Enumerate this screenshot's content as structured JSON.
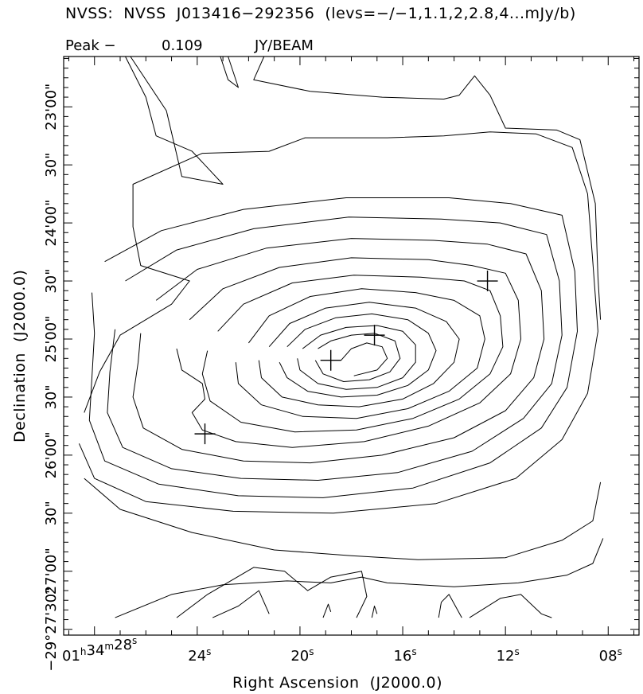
{
  "header": {
    "title": "NVSS:  NVSS  J013416−292356  (levs=−/−1,1.1,2,2.8,4...mJy/b)",
    "peak_label": "Peak −",
    "peak_value": "0.109",
    "peak_unit": "JY/BEAM"
  },
  "chart_data": {
    "type": "contour",
    "title": "NVSS:  NVSS  J013416−292356  (levs=−/−1,1.1,2,2.8,4...mJy/b)",
    "xlabel": "Right Ascension  (J2000.0)",
    "ylabel": "Declination  (J2000.0)",
    "peak": {
      "label": "Peak −",
      "value": 0.109,
      "unit": "JY/BEAM"
    },
    "contour_levels_mJy_per_beam": "−/−1,1.1,2,2.8,4...",
    "x_axis": {
      "unit": "seconds of RA (01h34m)",
      "range": [
        29.2,
        6.8
      ],
      "major_ticks": [
        {
          "value": 28,
          "label_main": "01",
          "sup1": "h",
          "mid": "34",
          "sup2": "m",
          "tail": "28",
          "sup3": "s"
        },
        {
          "value": 24,
          "label_main": "24",
          "sup1": "s"
        },
        {
          "value": 20,
          "label_main": "20",
          "sup1": "s"
        },
        {
          "value": 16,
          "label_main": "16",
          "sup1": "s"
        },
        {
          "value": 12,
          "label_main": "12",
          "sup1": "s"
        },
        {
          "value": 8,
          "label_main": "08",
          "sup1": "s"
        }
      ]
    },
    "y_axis": {
      "unit": "arcseconds relative to −29°22'00\"",
      "range": [
        -333,
        -34
      ],
      "major_ticks": [
        {
          "value": -60,
          "label": "23'00\""
        },
        {
          "value": -90,
          "label": "30\""
        },
        {
          "value": -120,
          "label": "24'00\""
        },
        {
          "value": -150,
          "label": "30\""
        },
        {
          "value": -180,
          "label": "25'00\""
        },
        {
          "value": -210,
          "label": "30\""
        },
        {
          "value": -240,
          "label": "26'00\""
        },
        {
          "value": -270,
          "label": "30\""
        },
        {
          "value": -300,
          "label": "27'00\""
        },
        {
          "value": -330,
          "label": "−29°27'30\""
        }
      ]
    },
    "markers": [
      {
        "ra_s": 18.8,
        "dec_as": -191
      },
      {
        "ra_s": 17.1,
        "dec_as": -178
      },
      {
        "ra_s": 12.7,
        "dec_as": -150
      },
      {
        "ra_s": 23.7,
        "dec_as": -229
      }
    ],
    "contours": [
      [
        [
          18.4,
          -191
        ],
        [
          18.0,
          -185
        ],
        [
          17.4,
          -182
        ],
        [
          16.8,
          -184
        ],
        [
          16.6,
          -190
        ],
        [
          17.0,
          -196
        ],
        [
          17.9,
          -199
        ]
      ],
      [
        [
          19.3,
          -185
        ],
        [
          18.8,
          -181
        ],
        [
          18.0,
          -178
        ],
        [
          17.1,
          -177
        ],
        [
          16.3,
          -181
        ],
        [
          16.1,
          -190
        ],
        [
          16.5,
          -197
        ],
        [
          17.3,
          -201
        ],
        [
          18.3,
          -202
        ],
        [
          19.1,
          -198
        ],
        [
          19.4,
          -191
        ]
      ],
      [
        [
          19.9,
          -185
        ],
        [
          19.2,
          -178
        ],
        [
          18.2,
          -174
        ],
        [
          17.0,
          -173
        ],
        [
          16.0,
          -176
        ],
        [
          15.5,
          -183
        ],
        [
          15.5,
          -192
        ],
        [
          16.0,
          -200
        ],
        [
          17.0,
          -205
        ],
        [
          18.2,
          -206
        ],
        [
          19.3,
          -203
        ],
        [
          20.0,
          -196
        ],
        [
          20.1,
          -190
        ]
      ],
      [
        [
          20.5,
          -184
        ],
        [
          19.8,
          -175
        ],
        [
          18.6,
          -169
        ],
        [
          17.2,
          -167
        ],
        [
          15.8,
          -170
        ],
        [
          15.0,
          -177
        ],
        [
          14.7,
          -186
        ],
        [
          15.0,
          -196
        ],
        [
          15.8,
          -204
        ],
        [
          17.0,
          -209
        ],
        [
          18.4,
          -210
        ],
        [
          19.7,
          -207
        ],
        [
          20.5,
          -200
        ],
        [
          20.8,
          -192
        ]
      ],
      [
        [
          21.2,
          -184
        ],
        [
          20.4,
          -172
        ],
        [
          19.0,
          -164
        ],
        [
          17.3,
          -161
        ],
        [
          15.5,
          -164
        ],
        [
          14.3,
          -171
        ],
        [
          13.8,
          -180
        ],
        [
          14.0,
          -192
        ],
        [
          14.8,
          -203
        ],
        [
          16.0,
          -211
        ],
        [
          17.7,
          -215
        ],
        [
          19.3,
          -214
        ],
        [
          20.7,
          -210
        ],
        [
          21.5,
          -200
        ],
        [
          21.6,
          -191
        ]
      ],
      [
        [
          22.0,
          -182
        ],
        [
          21.2,
          -168
        ],
        [
          19.6,
          -158
        ],
        [
          17.6,
          -154
        ],
        [
          15.5,
          -156
        ],
        [
          14.0,
          -160
        ],
        [
          13.0,
          -168
        ],
        [
          12.8,
          -180
        ],
        [
          13.1,
          -195
        ],
        [
          14.2,
          -207
        ],
        [
          15.8,
          -216
        ],
        [
          17.8,
          -221
        ],
        [
          19.9,
          -220
        ],
        [
          21.5,
          -214
        ],
        [
          22.4,
          -203
        ],
        [
          22.5,
          -192
        ]
      ],
      [
        [
          23.2,
          -176
        ],
        [
          22.2,
          -162
        ],
        [
          20.3,
          -151
        ],
        [
          17.9,
          -147
        ],
        [
          15.3,
          -148
        ],
        [
          13.6,
          -150
        ],
        [
          12.6,
          -155
        ],
        [
          12.2,
          -168
        ],
        [
          12.1,
          -184
        ],
        [
          12.6,
          -198
        ],
        [
          13.8,
          -211
        ],
        [
          15.6,
          -221
        ],
        [
          17.8,
          -227
        ],
        [
          20.2,
          -228
        ],
        [
          22.3,
          -223
        ],
        [
          23.5,
          -212
        ],
        [
          23.8,
          -198
        ],
        [
          23.6,
          -186
        ]
      ],
      [
        [
          24.3,
          -170
        ],
        [
          23.0,
          -154
        ],
        [
          20.8,
          -143
        ],
        [
          18.0,
          -138
        ],
        [
          15.0,
          -139
        ],
        [
          13.3,
          -142
        ],
        [
          12.0,
          -146
        ],
        [
          11.5,
          -160
        ],
        [
          11.4,
          -180
        ],
        [
          11.8,
          -198
        ],
        [
          13.0,
          -213
        ],
        [
          15.0,
          -225
        ],
        [
          17.5,
          -233
        ],
        [
          20.3,
          -236
        ],
        [
          22.5,
          -233
        ],
        [
          23.8,
          -227
        ],
        [
          24.2,
          -218
        ],
        [
          23.7,
          -211
        ],
        [
          23.8,
          -203
        ],
        [
          24.6,
          -196
        ],
        [
          24.8,
          -185
        ]
      ],
      [
        [
          25.6,
          -160
        ],
        [
          24.0,
          -144
        ],
        [
          21.3,
          -133
        ],
        [
          18.0,
          -128
        ],
        [
          14.8,
          -129
        ],
        [
          12.7,
          -131
        ],
        [
          11.2,
          -136
        ],
        [
          10.6,
          -155
        ],
        [
          10.5,
          -180
        ],
        [
          10.9,
          -200
        ],
        [
          12.0,
          -217
        ],
        [
          14.0,
          -231
        ],
        [
          16.8,
          -240
        ],
        [
          19.6,
          -244
        ],
        [
          22.2,
          -243
        ],
        [
          24.6,
          -237
        ],
        [
          26.1,
          -226
        ],
        [
          26.5,
          -210
        ],
        [
          26.3,
          -192
        ],
        [
          26.2,
          -177
        ]
      ],
      [
        [
          26.8,
          -150
        ],
        [
          24.8,
          -134
        ],
        [
          21.8,
          -123
        ],
        [
          18.1,
          -117
        ],
        [
          14.5,
          -118
        ],
        [
          12.2,
          -120
        ],
        [
          10.4,
          -126
        ],
        [
          9.9,
          -150
        ],
        [
          9.8,
          -178
        ],
        [
          10.2,
          -203
        ],
        [
          11.3,
          -221
        ],
        [
          13.3,
          -238
        ],
        [
          16.2,
          -249
        ],
        [
          19.3,
          -253
        ],
        [
          22.3,
          -252
        ],
        [
          25.0,
          -247
        ],
        [
          26.9,
          -236
        ],
        [
          27.5,
          -218
        ],
        [
          27.4,
          -197
        ],
        [
          27.2,
          -175
        ]
      ],
      [
        [
          27.6,
          -140
        ],
        [
          25.4,
          -124
        ],
        [
          22.2,
          -113
        ],
        [
          18.2,
          -107
        ],
        [
          14.2,
          -107
        ],
        [
          11.8,
          -110
        ],
        [
          9.8,
          -116
        ],
        [
          9.3,
          -145
        ],
        [
          9.2,
          -176
        ],
        [
          9.6,
          -205
        ],
        [
          10.6,
          -226
        ],
        [
          12.6,
          -244
        ],
        [
          15.6,
          -257
        ],
        [
          19.1,
          -262
        ],
        [
          22.4,
          -261
        ],
        [
          25.5,
          -255
        ],
        [
          27.6,
          -243
        ],
        [
          28.2,
          -222
        ],
        [
          28.1,
          -200
        ],
        [
          28.0,
          -177
        ],
        [
          28.1,
          -156
        ]
      ],
      [
        [
          28.4,
          -218
        ],
        [
          27.8,
          -197
        ],
        [
          27.0,
          -178
        ],
        [
          25.0,
          -162
        ],
        [
          24.3,
          -150
        ],
        [
          26.2,
          -142
        ],
        [
          26.5,
          -122
        ],
        [
          26.5,
          -100
        ],
        [
          23.8,
          -84
        ],
        [
          21.2,
          -83
        ],
        [
          19.8,
          -76
        ],
        [
          16.6,
          -76
        ],
        [
          14.4,
          -75
        ],
        [
          12.6,
          -73
        ],
        [
          10.8,
          -74
        ],
        [
          9.4,
          -81
        ],
        [
          8.8,
          -105
        ],
        [
          8.6,
          -140
        ],
        [
          8.4,
          -176
        ],
        [
          8.8,
          -208
        ],
        [
          9.8,
          -232
        ],
        [
          11.6,
          -252
        ],
        [
          14.7,
          -265
        ],
        [
          18.7,
          -270
        ],
        [
          22.6,
          -269
        ],
        [
          26.0,
          -264
        ],
        [
          28.0,
          -252
        ],
        [
          28.6,
          -234
        ]
      ],
      [
        [
          26.6,
          -34
        ],
        [
          25.2,
          -62
        ],
        [
          24.6,
          -96
        ],
        [
          23.0,
          -100
        ],
        [
          24.2,
          -83
        ],
        [
          25.6,
          -75
        ],
        [
          26.0,
          -55
        ],
        [
          26.8,
          -34
        ]
      ],
      [
        [
          21.4,
          -34
        ],
        [
          21.8,
          -46
        ],
        [
          19.6,
          -52
        ],
        [
          16.8,
          -55
        ],
        [
          14.4,
          -56
        ],
        [
          13.8,
          -54
        ],
        [
          13.2,
          -44
        ],
        [
          12.6,
          -54
        ],
        [
          12.0,
          -71
        ],
        [
          10.0,
          -72
        ],
        [
          9.1,
          -77
        ],
        [
          8.5,
          -110
        ],
        [
          8.4,
          -148
        ],
        [
          8.3,
          -170
        ]
      ],
      [
        [
          23.1,
          -34
        ],
        [
          22.8,
          -46
        ],
        [
          22.4,
          -50
        ],
        [
          22.8,
          -34
        ]
      ],
      [
        [
          28.4,
          -252
        ],
        [
          27.0,
          -268
        ],
        [
          24.2,
          -280
        ],
        [
          21.0,
          -289
        ],
        [
          18.0,
          -292
        ],
        [
          15.4,
          -294
        ],
        [
          12.0,
          -293
        ],
        [
          9.8,
          -284
        ],
        [
          8.6,
          -274
        ],
        [
          8.3,
          -254
        ]
      ],
      [
        [
          27.2,
          -324
        ],
        [
          25.0,
          -312
        ],
        [
          23.0,
          -307
        ],
        [
          20.5,
          -305
        ],
        [
          18.8,
          -306
        ],
        [
          17.6,
          -303
        ],
        [
          16.6,
          -306
        ],
        [
          14.0,
          -308
        ],
        [
          11.5,
          -306
        ],
        [
          9.6,
          -302
        ],
        [
          8.6,
          -296
        ],
        [
          8.2,
          -283
        ]
      ],
      [
        [
          24.8,
          -324
        ],
        [
          23.6,
          -312
        ],
        [
          21.8,
          -298
        ],
        [
          20.6,
          -300
        ],
        [
          19.7,
          -310
        ],
        [
          18.8,
          -303
        ],
        [
          17.6,
          -300
        ],
        [
          17.4,
          -313
        ],
        [
          17.8,
          -324
        ]
      ],
      [
        [
          23.4,
          -324
        ],
        [
          22.4,
          -318
        ],
        [
          21.6,
          -310
        ],
        [
          21.2,
          -322
        ]
      ],
      [
        [
          19.1,
          -324
        ],
        [
          18.9,
          -317
        ],
        [
          18.8,
          -321
        ]
      ],
      [
        [
          17.2,
          -324
        ],
        [
          17.1,
          -318
        ],
        [
          17.0,
          -322
        ]
      ],
      [
        [
          14.6,
          -324
        ],
        [
          14.5,
          -316
        ],
        [
          14.2,
          -312
        ],
        [
          13.7,
          -324
        ]
      ],
      [
        [
          13.4,
          -324
        ],
        [
          12.2,
          -314
        ],
        [
          11.4,
          -312
        ],
        [
          10.6,
          -322
        ],
        [
          10.2,
          -324
        ]
      ]
    ]
  }
}
